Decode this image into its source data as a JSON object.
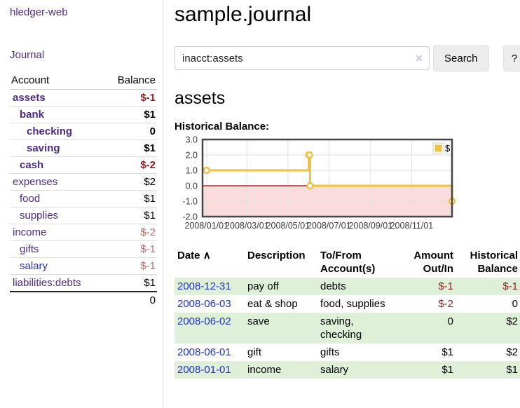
{
  "app": {
    "title": "hledger-web"
  },
  "nav": {
    "journal": "Journal"
  },
  "colors": {
    "link_purple": "#4e2a8e",
    "link_blue": "#2233cc",
    "negative_strong": "#8f1f1f",
    "negative_muted": "#b16a6a",
    "row_green": "#dff0d8",
    "series_gold": "#edc240"
  },
  "sidebar": {
    "header": {
      "account": "Account",
      "balance": "Balance"
    },
    "accounts": [
      {
        "name": "assets",
        "level": 1,
        "bold": true,
        "link": "purple",
        "balance": "$-1",
        "tone": "neg-strong"
      },
      {
        "name": "bank",
        "level": 2,
        "bold": true,
        "link": "purple",
        "balance": "$1",
        "tone": "normal"
      },
      {
        "name": "checking",
        "level": 3,
        "bold": true,
        "link": "purple",
        "balance": "0",
        "tone": "normal"
      },
      {
        "name": "saving",
        "level": 3,
        "bold": true,
        "link": "purple",
        "balance": "$1",
        "tone": "normal"
      },
      {
        "name": "cash",
        "level": 2,
        "bold": true,
        "link": "purple",
        "balance": "$-2",
        "tone": "neg-strong"
      },
      {
        "name": "expenses",
        "level": 1,
        "bold": false,
        "link": "purple",
        "balance": "$2",
        "tone": "normal"
      },
      {
        "name": "food",
        "level": 2,
        "bold": false,
        "link": "purple",
        "balance": "$1",
        "tone": "normal"
      },
      {
        "name": "supplies",
        "level": 2,
        "bold": false,
        "link": "purple",
        "balance": "$1",
        "tone": "normal"
      },
      {
        "name": "income",
        "level": 1,
        "bold": false,
        "link": "purple",
        "balance": "$-2",
        "tone": "neg-muted"
      },
      {
        "name": "gifts",
        "level": 2,
        "bold": false,
        "link": "purple",
        "balance": "$-1",
        "tone": "neg-muted"
      },
      {
        "name": "salary",
        "level": 2,
        "bold": false,
        "link": "blue",
        "balance": "$-1",
        "tone": "neg-muted"
      },
      {
        "name": "liabilities:debts",
        "level": 1,
        "bold": false,
        "link": "purple",
        "balance": "$1",
        "tone": "normal"
      }
    ],
    "total": "0"
  },
  "main": {
    "title": "sample.journal",
    "account_heading": "assets",
    "chart_label": "Historical Balance:"
  },
  "search": {
    "value": "inacct:assets",
    "clear_icon": "✕",
    "button": "Search",
    "help_button": "?"
  },
  "register": {
    "headers": {
      "date": "Date",
      "description": "Description",
      "accounts": "To/From Account(s)",
      "amount": "Amount Out/In",
      "balance": "Historical Balance"
    },
    "sort_indicator": "∧",
    "rows": [
      {
        "date": "2008-12-31",
        "description": "pay off",
        "accounts": "debts",
        "amount": "$-1",
        "amount_tone": "negative",
        "balance": "$-1",
        "balance_tone": "negative"
      },
      {
        "date": "2008-06-03",
        "description": "eat & shop",
        "accounts": "food, supplies",
        "amount": "$-2",
        "amount_tone": "negative",
        "balance": "0",
        "balance_tone": "normal"
      },
      {
        "date": "2008-06-02",
        "description": "save",
        "accounts": "saving, checking",
        "amount": "0",
        "amount_tone": "normal",
        "balance": "$2",
        "balance_tone": "normal"
      },
      {
        "date": "2008-06-01",
        "description": "gift",
        "accounts": "gifts",
        "amount": "$1",
        "amount_tone": "normal",
        "balance": "$2",
        "balance_tone": "normal"
      },
      {
        "date": "2008-01-01",
        "description": "income",
        "accounts": "salary",
        "amount": "$1",
        "amount_tone": "normal",
        "balance": "$1",
        "balance_tone": "normal"
      }
    ]
  },
  "chart_data": {
    "type": "line",
    "step": true,
    "title": "Historical Balance",
    "series": [
      {
        "name": "$",
        "color": "#edc240",
        "points": [
          [
            "2008-01-01",
            1
          ],
          [
            "2008-06-01",
            2
          ],
          [
            "2008-06-02",
            2
          ],
          [
            "2008-06-03",
            0
          ],
          [
            "2008-12-31",
            -1
          ]
        ]
      }
    ],
    "x_range": [
      "2007-12-26",
      "2008-12-31"
    ],
    "x_ticks": [
      [
        "2008-01-01",
        "2008/01/01"
      ],
      [
        "2008-03-01",
        "2008/03/01"
      ],
      [
        "2008-05-01",
        "2008/05/01"
      ],
      [
        "2008-07-01",
        "2008/07/01"
      ],
      [
        "2008-09-01",
        "2008/09/01"
      ],
      [
        "2008-11-01",
        "2008/11/01"
      ]
    ],
    "ylim": [
      -2,
      3
    ],
    "y_ticks": [
      3,
      2,
      1,
      0,
      -1,
      -2
    ],
    "grid": true,
    "legend_position": "top-right",
    "grid_color": "#e2e2e2",
    "zero_line_color": "#990000",
    "negative_region_color": "#fbdcdc",
    "border_color": "#454545"
  }
}
